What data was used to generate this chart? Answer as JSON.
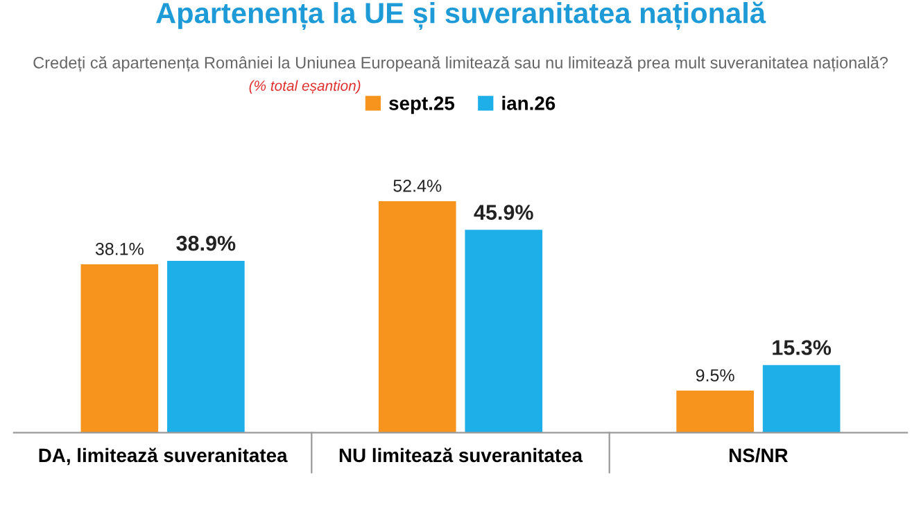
{
  "chart_data": {
    "type": "bar",
    "title": "Apartenența la UE și suveranitatea națională",
    "subtitle": "Credeți că apartenența României la Uniunea Europeană limitează sau nu limitează prea mult suveranitatea națională?",
    "annotations": [
      "(% total eșantion)"
    ],
    "categories": [
      "DA, limitează suveranitatea",
      "NU limitează suveranitatea",
      "NS/NR"
    ],
    "series": [
      {
        "name": "sept.25",
        "color": "#f7941d",
        "values": [
          38.1,
          52.4,
          9.5
        ],
        "value_labels": [
          "38.1%",
          "52.4%",
          "9.5%"
        ]
      },
      {
        "name": "ian.26",
        "color": "#1eaee8",
        "values": [
          38.9,
          45.9,
          15.3
        ],
        "value_labels": [
          "38.9%",
          "45.9%",
          "15.3%"
        ]
      }
    ],
    "legend": "top",
    "grid": false
  }
}
